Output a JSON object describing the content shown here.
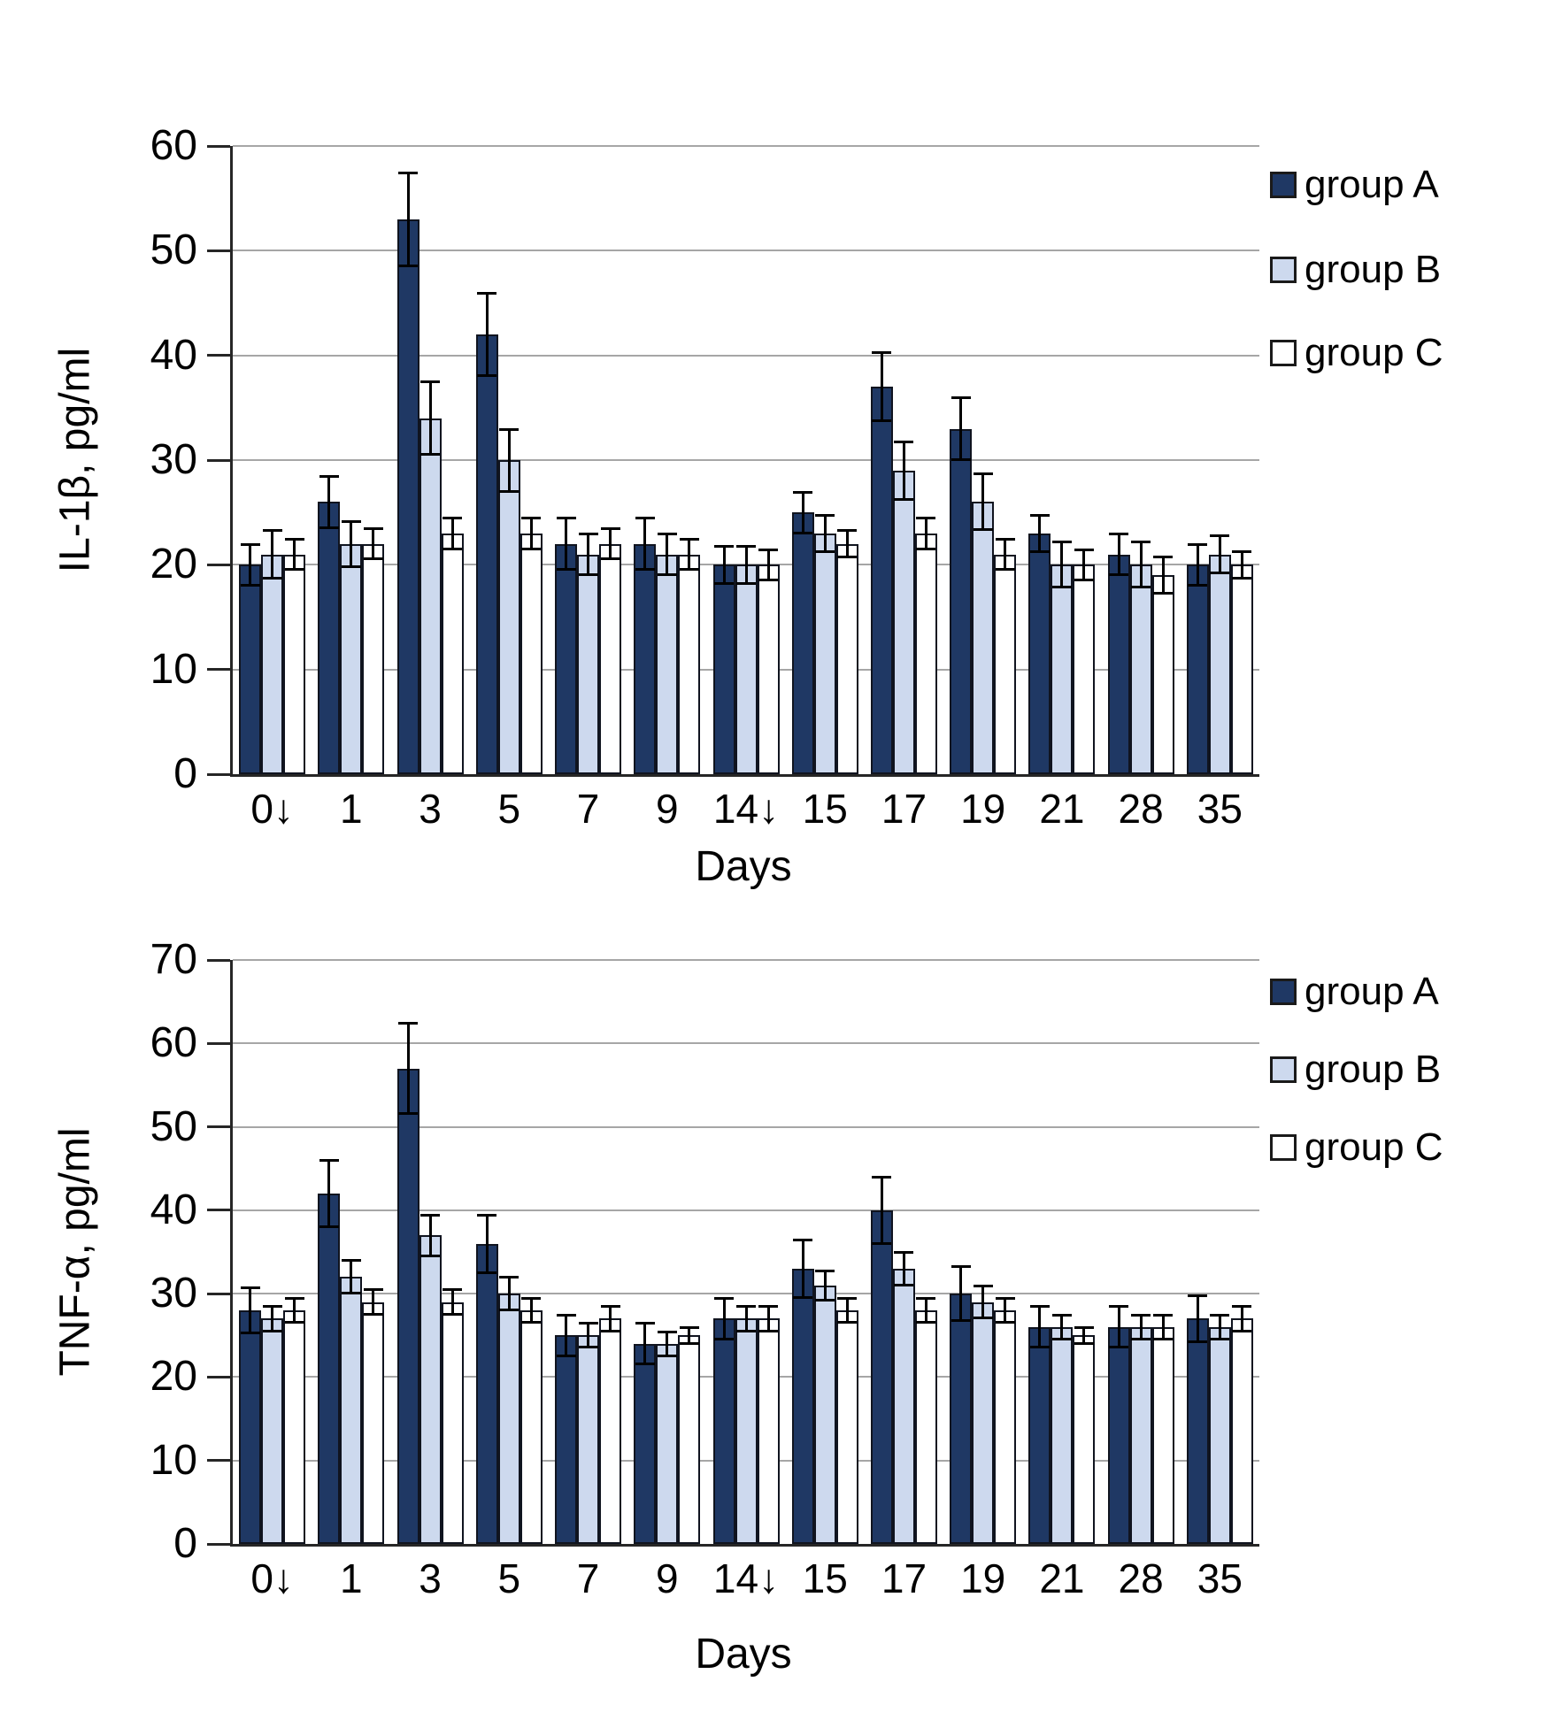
{
  "figure": {
    "description_x_axis_note": "Days",
    "grid_color": "#A6A6A6",
    "axis_color": "#262626",
    "error_bar_color": "#000000",
    "bar_border_color": "#10141F"
  },
  "chart_data": [
    {
      "type": "bar",
      "title": "",
      "ylabel": "IL-1β, pg/ml",
      "xlabel": "Days",
      "ylim": [
        0,
        60
      ],
      "yticks": [
        0,
        10,
        20,
        30,
        40,
        50,
        60
      ],
      "grid": true,
      "legend_position": "top-right",
      "categories": [
        "0↓",
        "1",
        "3",
        "5",
        "7",
        "9",
        "14↓",
        "15",
        "17",
        "19",
        "21",
        "28",
        "35"
      ],
      "series": [
        {
          "name": "group A",
          "color": "#1F3864",
          "values": [
            20,
            26,
            53,
            42,
            22,
            22,
            20,
            25,
            37,
            33,
            23,
            21,
            20
          ],
          "errors": [
            2,
            2.5,
            4.5,
            4,
            2.5,
            2.5,
            1.8,
            2,
            3.3,
            3,
            1.8,
            2,
            2
          ]
        },
        {
          "name": "group B",
          "color": "#CDD9EE",
          "values": [
            21,
            22,
            34,
            30,
            21,
            21,
            20,
            23,
            29,
            26,
            20,
            20,
            21
          ],
          "errors": [
            2.3,
            2.2,
            3.5,
            3,
            2,
            2,
            1.8,
            1.8,
            2.8,
            2.7,
            2.2,
            2.2,
            1.8
          ]
        },
        {
          "name": "group C",
          "color": "#FFFFFF",
          "values": [
            21,
            22,
            23,
            23,
            22,
            21,
            20,
            22,
            23,
            21,
            20,
            19,
            20
          ],
          "errors": [
            1.5,
            1.5,
            1.5,
            1.5,
            1.5,
            1.5,
            1.5,
            1.3,
            1.5,
            1.5,
            1.5,
            1.8,
            1.3
          ]
        }
      ]
    },
    {
      "type": "bar",
      "title": "",
      "ylabel": "TNF-α, pg/ml",
      "xlabel": "Days",
      "ylim": [
        0,
        70
      ],
      "yticks": [
        0,
        10,
        20,
        30,
        40,
        50,
        60,
        70
      ],
      "grid": true,
      "legend_position": "top-right",
      "categories": [
        "0↓",
        "1",
        "3",
        "5",
        "7",
        "9",
        "14↓",
        "15",
        "17",
        "19",
        "21",
        "28",
        "35"
      ],
      "series": [
        {
          "name": "group A",
          "color": "#1F3864",
          "values": [
            28,
            42,
            57,
            36,
            25,
            24,
            27,
            33,
            40,
            30,
            26,
            26,
            27
          ],
          "errors": [
            2.8,
            4,
            5.5,
            3.5,
            2.5,
            2.5,
            2.5,
            3.5,
            4,
            3.3,
            2.5,
            2.5,
            2.8
          ]
        },
        {
          "name": "group B",
          "color": "#CDD9EE",
          "values": [
            27,
            32,
            37,
            30,
            25,
            24,
            27,
            31,
            33,
            29,
            26,
            26,
            26
          ],
          "errors": [
            1.5,
            2,
            2.5,
            2,
            1.5,
            1.5,
            1.5,
            1.8,
            2,
            2,
            1.5,
            1.5,
            1.5
          ]
        },
        {
          "name": "group C",
          "color": "#FFFFFF",
          "values": [
            28,
            29,
            29,
            28,
            27,
            25,
            27,
            28,
            28,
            28,
            25,
            26,
            27
          ],
          "errors": [
            1.5,
            1.5,
            1.5,
            1.5,
            1.5,
            1,
            1.5,
            1.5,
            1.5,
            1.5,
            1,
            1.5,
            1.5
          ]
        }
      ]
    }
  ]
}
